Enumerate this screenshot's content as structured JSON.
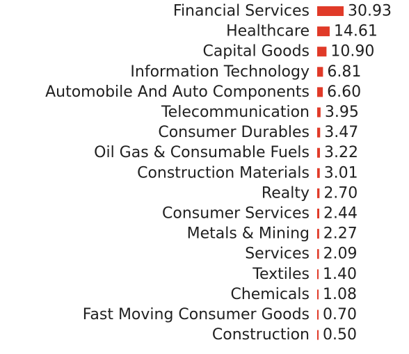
{
  "chart_data": {
    "type": "bar",
    "orientation": "horizontal",
    "title": "",
    "xlabel": "",
    "ylabel": "",
    "grid": false,
    "bar_color": "#e03a28",
    "xlim": [
      0,
      30.93
    ],
    "categories": [
      "Financial Services",
      "Healthcare",
      "Capital Goods",
      "Information Technology",
      "Automobile And Auto Components",
      "Telecommunication",
      "Consumer Durables",
      "Oil Gas & Consumable Fuels",
      "Construction Materials",
      "Realty",
      "Consumer Services",
      "Metals & Mining",
      "Services",
      "Textiles",
      "Chemicals",
      "Fast Moving Consumer Goods",
      "Construction"
    ],
    "values": [
      30.93,
      14.61,
      10.9,
      6.81,
      6.6,
      3.95,
      3.47,
      3.22,
      3.01,
      2.7,
      2.44,
      2.27,
      2.09,
      1.4,
      1.08,
      0.7,
      0.5
    ],
    "value_labels": [
      "30.93",
      "14.61",
      "10.90",
      "6.81",
      "6.60",
      "3.95",
      "3.47",
      "3.22",
      "3.01",
      "2.70",
      "2.44",
      "2.27",
      "2.09",
      "1.40",
      "1.08",
      "0.70",
      "0.50"
    ]
  }
}
